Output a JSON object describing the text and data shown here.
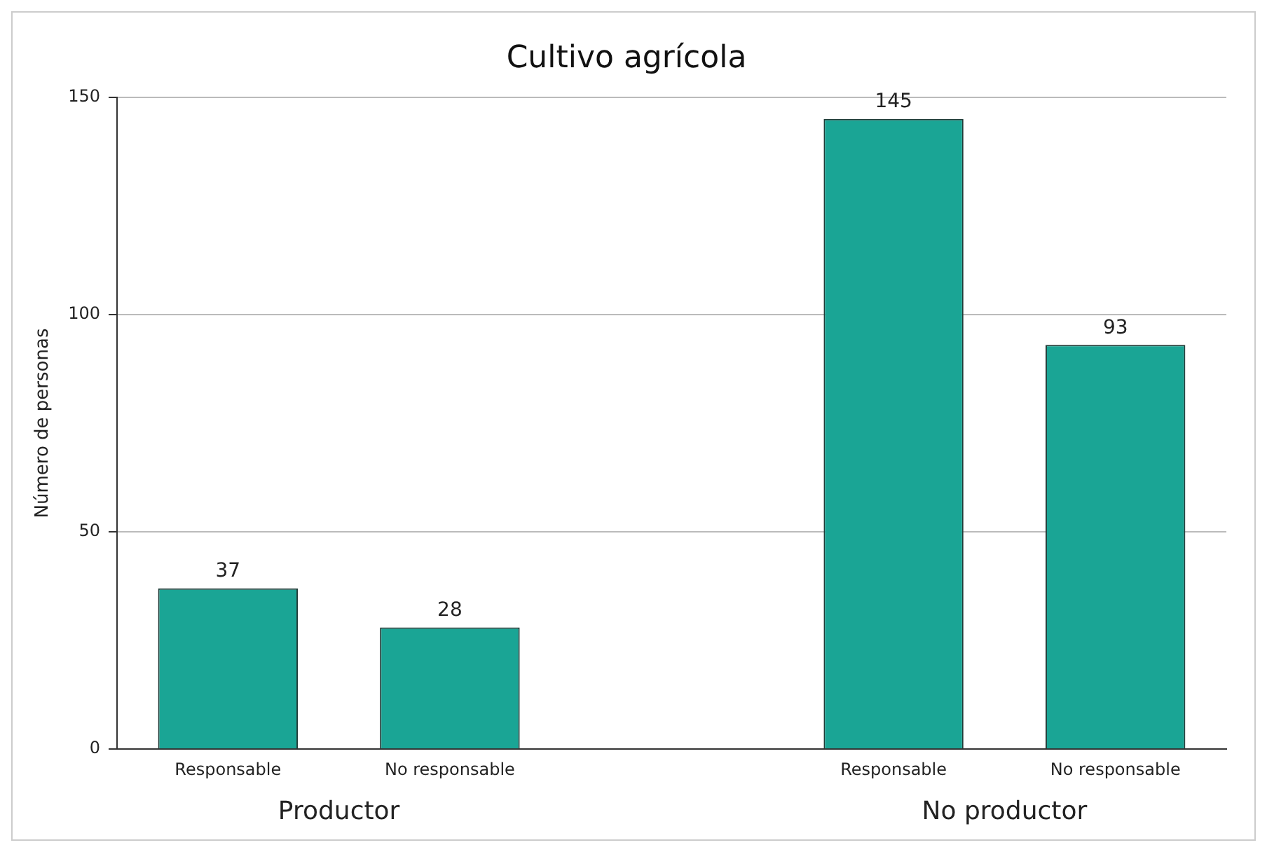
{
  "chart_data": {
    "type": "bar",
    "title": "Cultivo agrícola",
    "ylabel": "Número de personas",
    "categories": [
      "Responsable",
      "No responsable",
      null,
      "Responsable",
      "No responsable"
    ],
    "values": [
      37,
      28,
      null,
      145,
      93
    ],
    "color": "#1aa595",
    "ylim": [
      0,
      150
    ],
    "yticks": [
      0,
      50,
      100,
      150
    ],
    "grid": "y",
    "data_labels": true,
    "legend": false,
    "annotations": [
      "Productor",
      "No productor"
    ]
  }
}
